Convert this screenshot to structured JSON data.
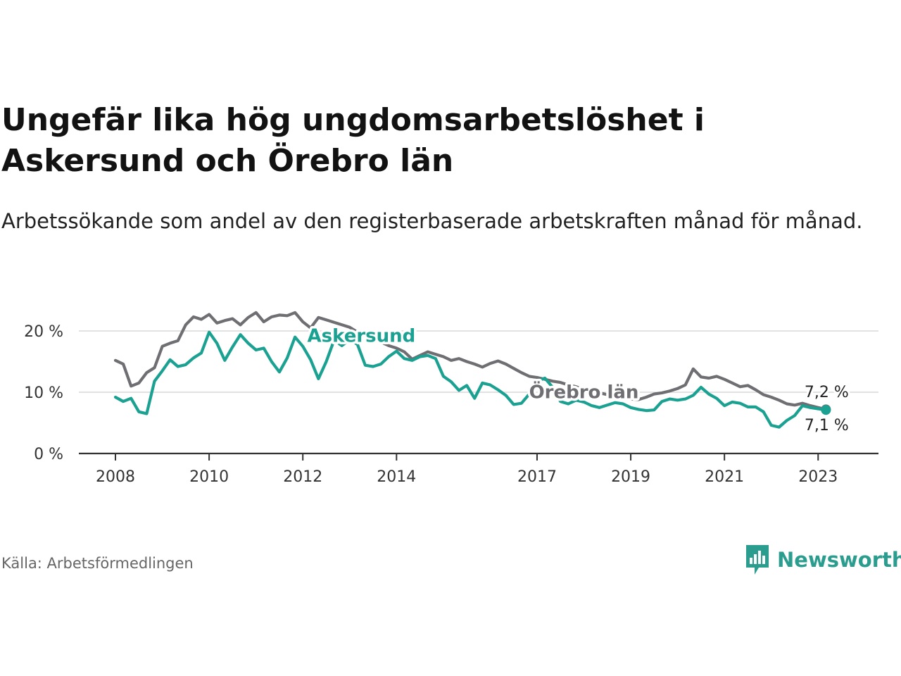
{
  "title": "Ungefär lika hög ungdomsarbetslöshet i Askersund och Örebro län",
  "subtitle": "Arbetssökande som andel av den registerbaserade arbetskraften månad för månad.",
  "source": "Källa: Arbetsförmedlingen",
  "brand": {
    "name": "Newsworthy",
    "icon": "newsworthy-logo-icon",
    "color": "#2a9d8f"
  },
  "colors": {
    "askersund": "#1aa192",
    "orebro": "#6e6e73",
    "grid": "#d9d9d9",
    "axis": "#333333"
  },
  "chart_data": {
    "type": "line",
    "title": "Ungefär lika hög ungdomsarbetslöshet i Askersund och Örebro län",
    "xlabel": "",
    "ylabel": "",
    "ylim": [
      0,
      25
    ],
    "xlim": [
      "2008-01",
      "2023-06"
    ],
    "grid": true,
    "y_ticks": [
      0,
      10,
      20
    ],
    "y_tick_labels": [
      "0 %",
      "10 %",
      "20 %"
    ],
    "x_ticks": [
      "2008",
      "2010",
      "2012",
      "2014",
      "2017",
      "2019",
      "2021",
      "2023"
    ],
    "series": [
      {
        "name": "Örebro län",
        "color": "#6e6e73",
        "end_label": "7,2 %",
        "x": [
          "2008-01",
          "2008-03",
          "2008-05",
          "2008-07",
          "2008-09",
          "2008-11",
          "2009-01",
          "2009-03",
          "2009-05",
          "2009-07",
          "2009-09",
          "2009-11",
          "2010-01",
          "2010-03",
          "2010-05",
          "2010-07",
          "2010-09",
          "2010-11",
          "2011-01",
          "2011-03",
          "2011-05",
          "2011-07",
          "2011-09",
          "2011-11",
          "2012-01",
          "2012-03",
          "2012-05",
          "2012-07",
          "2012-09",
          "2012-11",
          "2013-01",
          "2013-03",
          "2013-05",
          "2013-07",
          "2013-09",
          "2013-11",
          "2014-01",
          "2014-03",
          "2014-05",
          "2014-07",
          "2014-09",
          "2014-11",
          "2015-01",
          "2015-03",
          "2015-05",
          "2015-07",
          "2015-09",
          "2015-11",
          "2016-01",
          "2016-03",
          "2016-05",
          "2016-07",
          "2016-09",
          "2016-11",
          "2017-01",
          "2017-03",
          "2017-05",
          "2017-07",
          "2017-09",
          "2017-11",
          "2018-01",
          "2018-03",
          "2018-05",
          "2018-07",
          "2018-09",
          "2018-11",
          "2019-01",
          "2019-03",
          "2019-05",
          "2019-07",
          "2019-09",
          "2019-11",
          "2020-01",
          "2020-03",
          "2020-05",
          "2020-07",
          "2020-09",
          "2020-11",
          "2021-01",
          "2021-03",
          "2021-05",
          "2021-07",
          "2021-09",
          "2021-11",
          "2022-01",
          "2022-03",
          "2022-05",
          "2022-07",
          "2022-09",
          "2022-11",
          "2023-01",
          "2023-03"
        ],
        "values": [
          15.2,
          14.6,
          11.0,
          11.5,
          13.2,
          14.0,
          17.5,
          18.0,
          18.4,
          21.0,
          22.3,
          21.9,
          22.7,
          21.3,
          21.7,
          22.0,
          21.0,
          22.2,
          23.0,
          21.5,
          22.3,
          22.6,
          22.5,
          23.0,
          21.5,
          20.5,
          22.2,
          21.8,
          21.4,
          21.0,
          20.6,
          19.8,
          19.2,
          18.6,
          18.2,
          17.6,
          17.2,
          16.6,
          15.4,
          16.0,
          16.6,
          16.2,
          15.8,
          15.2,
          15.5,
          15.0,
          14.6,
          14.1,
          14.7,
          15.1,
          14.6,
          13.9,
          13.2,
          12.6,
          12.4,
          12.1,
          11.8,
          11.6,
          11.2,
          10.9,
          10.4,
          10.1,
          9.9,
          9.6,
          9.3,
          9.1,
          8.9,
          8.8,
          9.2,
          9.7,
          9.9,
          10.2,
          10.6,
          11.2,
          13.8,
          12.5,
          12.3,
          12.6,
          12.1,
          11.5,
          10.9,
          11.1,
          10.4,
          9.6,
          9.2,
          8.7,
          8.1,
          7.9,
          8.2,
          7.8,
          7.5,
          7.2
        ]
      },
      {
        "name": "Askersund",
        "color": "#1aa192",
        "end_label": "7,1 %",
        "x": [
          "2008-01",
          "2008-03",
          "2008-05",
          "2008-07",
          "2008-09",
          "2008-11",
          "2009-01",
          "2009-03",
          "2009-05",
          "2009-07",
          "2009-09",
          "2009-11",
          "2010-01",
          "2010-03",
          "2010-05",
          "2010-07",
          "2010-09",
          "2010-11",
          "2011-01",
          "2011-03",
          "2011-05",
          "2011-07",
          "2011-09",
          "2011-11",
          "2012-01",
          "2012-03",
          "2012-05",
          "2012-07",
          "2012-09",
          "2012-11",
          "2013-01",
          "2013-03",
          "2013-05",
          "2013-07",
          "2013-09",
          "2013-11",
          "2014-01",
          "2014-03",
          "2014-05",
          "2014-07",
          "2014-09",
          "2014-11",
          "2015-01",
          "2015-03",
          "2015-05",
          "2015-07",
          "2015-09",
          "2015-11",
          "2016-01",
          "2016-03",
          "2016-05",
          "2016-07",
          "2016-09",
          "2016-11",
          "2017-01",
          "2017-03",
          "2017-05",
          "2017-07",
          "2017-09",
          "2017-11",
          "2018-01",
          "2018-03",
          "2018-05",
          "2018-07",
          "2018-09",
          "2018-11",
          "2019-01",
          "2019-03",
          "2019-05",
          "2019-07",
          "2019-09",
          "2019-11",
          "2020-01",
          "2020-03",
          "2020-05",
          "2020-07",
          "2020-09",
          "2020-11",
          "2021-01",
          "2021-03",
          "2021-05",
          "2021-07",
          "2021-09",
          "2021-11",
          "2022-01",
          "2022-03",
          "2022-05",
          "2022-07",
          "2022-09",
          "2022-11",
          "2023-01",
          "2023-03"
        ],
        "values": [
          9.2,
          8.5,
          9.0,
          6.8,
          6.5,
          11.8,
          13.5,
          15.3,
          14.2,
          14.5,
          15.6,
          16.4,
          19.8,
          18.0,
          15.2,
          17.4,
          19.4,
          18.0,
          16.9,
          17.2,
          15.0,
          13.3,
          15.6,
          19.0,
          17.5,
          15.3,
          12.2,
          15.0,
          18.5,
          17.6,
          18.6,
          17.8,
          14.4,
          14.2,
          14.6,
          15.8,
          16.7,
          15.5,
          15.2,
          15.8,
          16.0,
          15.5,
          12.6,
          11.7,
          10.3,
          11.1,
          9.0,
          11.5,
          11.2,
          10.4,
          9.5,
          8.0,
          8.2,
          9.7,
          11.8,
          12.3,
          10.8,
          8.5,
          8.1,
          8.7,
          8.4,
          7.8,
          7.5,
          7.9,
          8.3,
          8.1,
          7.5,
          7.2,
          7.0,
          7.1,
          8.5,
          8.9,
          8.7,
          8.9,
          9.5,
          10.8,
          9.7,
          9.0,
          7.8,
          8.4,
          8.2,
          7.6,
          7.6,
          6.8,
          4.6,
          4.3,
          5.4,
          6.2,
          7.8,
          7.5,
          7.3,
          7.1
        ]
      }
    ]
  }
}
